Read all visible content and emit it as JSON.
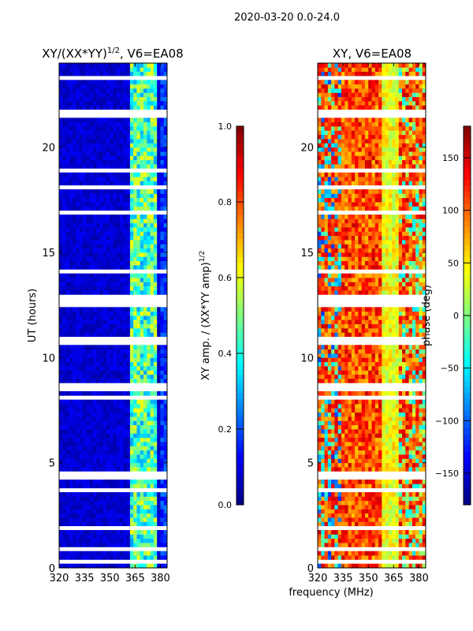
{
  "suptitle": "2020-03-20 0.0-24.0",
  "chart_data": [
    {
      "type": "heatmap",
      "title": "XY/(XX*YY)",
      "title_superscript": "1/2",
      "title_suffix": ", V6=EA08",
      "xlabel": "frequency (MHz)",
      "ylabel": "UT (hours)",
      "xlim": [
        320,
        384
      ],
      "ylim": [
        0,
        24
      ],
      "xticks": [
        "320",
        "335",
        "350",
        "365",
        "380"
      ],
      "xtick_values": [
        320,
        335,
        350,
        365,
        380
      ],
      "yticks": [
        "0",
        "5",
        "10",
        "15",
        "20"
      ],
      "ytick_values": [
        0,
        5,
        10,
        15,
        20
      ],
      "colormap": "jet",
      "clim": [
        0,
        1
      ],
      "colorbar_label": "XY amp. / (XX*YY amp)",
      "colorbar_label_superscript": "1/2",
      "colorbar_ticks": [
        "0.0",
        "0.2",
        "0.4",
        "0.6",
        "0.8",
        "1.0"
      ],
      "colorbar_tick_values": [
        0,
        0.2,
        0.4,
        0.6,
        0.8,
        1.0
      ],
      "background_level": 0.08,
      "bright_band_mhz": [
        362,
        378
      ],
      "bright_band_level": 0.45
    },
    {
      "type": "heatmap",
      "title": "XY, V6=EA08",
      "xlabel": "frequency (MHz)",
      "xlim": [
        320,
        384
      ],
      "ylim": [
        0,
        24
      ],
      "xticks": [
        "320",
        "335",
        "350",
        "365",
        "380"
      ],
      "xtick_values": [
        320,
        335,
        350,
        365,
        380
      ],
      "yticks": [
        "0",
        "5",
        "10",
        "15",
        "20"
      ],
      "ytick_values": [
        0,
        5,
        10,
        15,
        20
      ],
      "colormap": "jet",
      "clim": [
        -180,
        180
      ],
      "colorbar_label": "phase (deg)",
      "colorbar_ticks": [
        "−150",
        "−100",
        "−50",
        "0",
        "50",
        "100",
        "150"
      ],
      "colorbar_tick_values": [
        -150,
        -100,
        -50,
        0,
        50,
        100,
        150
      ],
      "typical_phase_deg": 110,
      "bright_band_mhz": [
        359,
        368
      ],
      "bright_band_phase_deg": 40
    }
  ],
  "flagged_time_ranges_hours": [
    [
      0.3,
      0.4
    ],
    [
      0.85,
      0.95
    ],
    [
      1.9,
      2.0
    ],
    [
      3.6,
      3.7
    ],
    [
      4.15,
      4.6
    ],
    [
      5.8,
      5.85
    ],
    [
      7.2,
      7.3
    ],
    [
      8.0,
      8.1
    ],
    [
      8.45,
      8.8
    ],
    [
      10.65,
      10.9
    ],
    [
      12.45,
      12.95
    ],
    [
      14.1,
      14.15
    ],
    [
      15.6,
      15.7
    ],
    [
      16.9,
      17.0
    ],
    [
      18.1,
      18.2
    ],
    [
      18.9,
      19.0
    ],
    [
      21.5,
      21.8
    ],
    [
      23.2,
      23.3
    ]
  ]
}
